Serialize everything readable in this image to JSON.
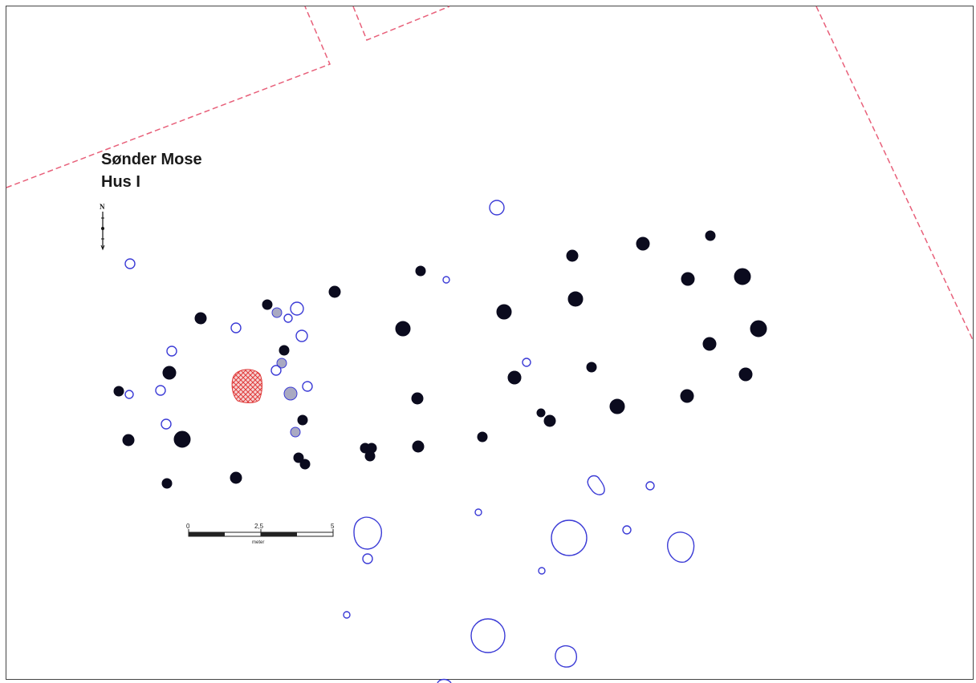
{
  "title": {
    "line1": "Sønder Mose",
    "line2": "Hus I"
  },
  "north_arrow": {
    "label": "N",
    "icon": "north-arrow-icon"
  },
  "scale_bar": {
    "tick_labels": [
      "0",
      "2,5",
      "5"
    ],
    "unit": "meter"
  },
  "colors": {
    "boundary": "#e8607a",
    "posthole_fill": "#0b0b1e",
    "open_feature": "#3b3bd6",
    "gray_feature": "#a9a9c2",
    "hearth_hatch": "#e03b3b",
    "frame": "#444444"
  },
  "legend_symbols": {
    "posthole": "filled-black-circle",
    "pit": "open-blue-outline",
    "gray_posthole": "gray-filled-circle",
    "hearth": "red-crosshatch"
  }
}
